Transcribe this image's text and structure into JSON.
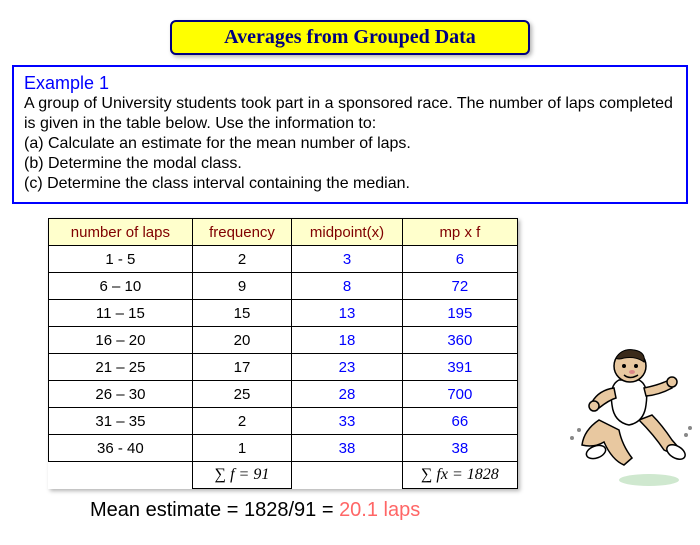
{
  "title": "Averages from Grouped Data",
  "example": {
    "heading": "Example 1",
    "line1": "A group of University students took part in a sponsored race. The number of laps completed is given in the table below. Use the information to:",
    "a": "(a) Calculate an estimate for the mean number of laps.",
    "b": "(b) Determine the modal class.",
    "c": "(c) Determine the class interval containing the median."
  },
  "table": {
    "headers": [
      "number of laps",
      "frequency",
      "midpoint(x)",
      "mp x f"
    ],
    "rows": [
      {
        "laps": "1 - 5",
        "f": "2",
        "x": "3",
        "fx": "6"
      },
      {
        "laps": "6 – 10",
        "f": "9",
        "x": "8",
        "fx": "72"
      },
      {
        "laps": "11 – 15",
        "f": "15",
        "x": "13",
        "fx": "195"
      },
      {
        "laps": "16 – 20",
        "f": "20",
        "x": "18",
        "fx": "360"
      },
      {
        "laps": "21 – 25",
        "f": "17",
        "x": "23",
        "fx": "391"
      },
      {
        "laps": "26 – 30",
        "f": "25",
        "x": "28",
        "fx": "700"
      },
      {
        "laps": "31 – 35",
        "f": "2",
        "x": "33",
        "fx": "66"
      },
      {
        "laps": "36 - 40",
        "f": "1",
        "x": "38",
        "fx": "38"
      }
    ],
    "sum_f": "∑ f  = 91",
    "sum_fx": "∑ fx = 1828"
  },
  "mean": {
    "prefix": "Mean estimate = 1828/91 = ",
    "result": "20.1 laps"
  },
  "colors": {
    "title_bg": "#ffff00",
    "title_border": "#000080",
    "title_text": "#000080",
    "example_border": "#0000ff",
    "example_heading": "#0000ff",
    "header_bg": "#ffffcc",
    "header_text": "#800000",
    "midpoint_text": "#0000ff",
    "mean_highlight": "#ff6666"
  }
}
